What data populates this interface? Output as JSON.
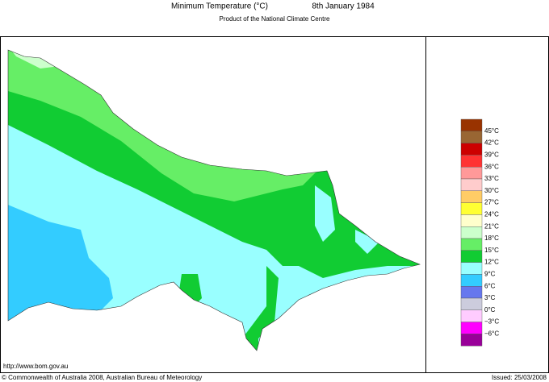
{
  "header": {
    "title": "Minimum Temperature (°C)",
    "date": "8th January 1984",
    "subtitle": "Product of the National Climate Centre"
  },
  "legend": {
    "colors": [
      "#993300",
      "#996633",
      "#cc0000",
      "#ff3333",
      "#ff9999",
      "#ffcccc",
      "#ffcc66",
      "#ffff33",
      "#ffffcc",
      "#ccffcc",
      "#66ee66",
      "#11cc33",
      "#99ffff",
      "#33ccff",
      "#6677ee",
      "#ccccdd",
      "#ffccff",
      "#ff00ff",
      "#990099"
    ],
    "labels": [
      "45°C",
      "42°C",
      "39°C",
      "36°C",
      "33°C",
      "30°C",
      "27°C",
      "24°C",
      "21°C",
      "18°C",
      "15°C",
      "12°C",
      "9°C",
      "6°C",
      "3°C",
      "0°C",
      "−3°C",
      "−6°C"
    ]
  },
  "footer": {
    "url": "http://www.bom.gov.au",
    "copyright": "© Commonwealth of Australia 2008, Australian Bureau of Meteorology",
    "issued": "Issued: 25/03/2008"
  }
}
